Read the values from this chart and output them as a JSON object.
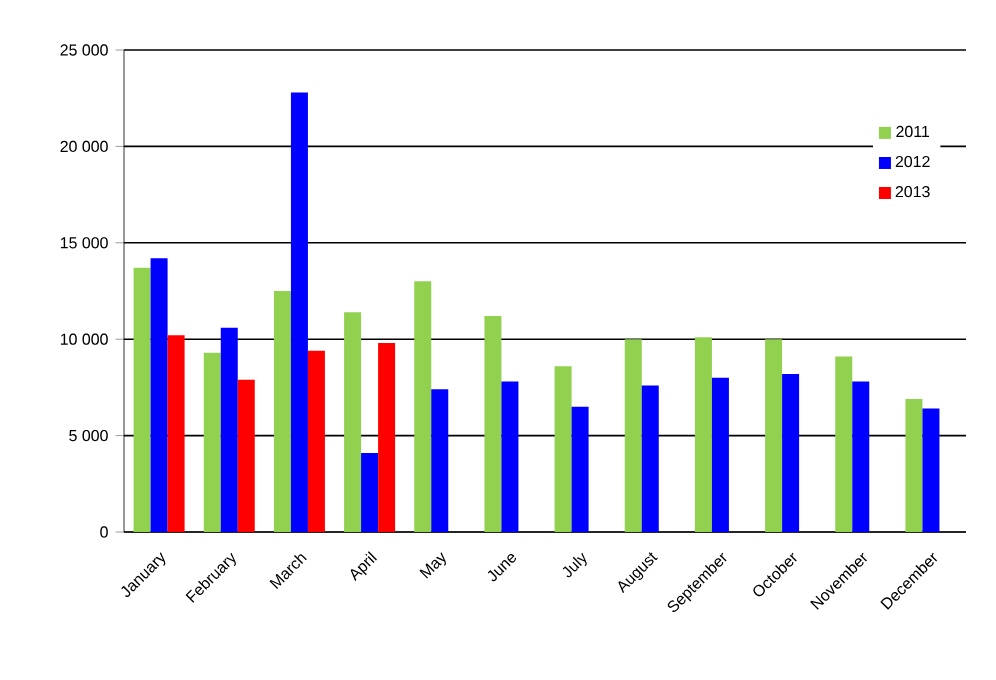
{
  "chart_data": {
    "type": "bar",
    "categories": [
      "January",
      "February",
      "March",
      "April",
      "May",
      "June",
      "July",
      "August",
      "September",
      "October",
      "November",
      "December"
    ],
    "series": [
      {
        "name": "2011",
        "color": "#92d050",
        "values": [
          13700,
          9300,
          12500,
          11400,
          13000,
          11200,
          8600,
          10000,
          10100,
          10000,
          9100,
          6900
        ]
      },
      {
        "name": "2012",
        "color": "#0000ff",
        "values": [
          14200,
          10600,
          22800,
          4100,
          7400,
          7800,
          6500,
          7600,
          8000,
          8200,
          7800,
          6400
        ]
      },
      {
        "name": "2013",
        "color": "#ff0000",
        "values": [
          10200,
          7900,
          9400,
          9800,
          null,
          null,
          null,
          null,
          null,
          null,
          null,
          null
        ]
      }
    ],
    "ylim": [
      0,
      25000
    ],
    "yticks": [
      {
        "value": 0,
        "label": "0"
      },
      {
        "value": 5000,
        "label": "5 000"
      },
      {
        "value": 10000,
        "label": "10 000"
      },
      {
        "value": 15000,
        "label": "15 000"
      },
      {
        "value": 20000,
        "label": "20 000"
      },
      {
        "value": 25000,
        "label": "25 000"
      }
    ],
    "grid": "y",
    "legend": "top right"
  }
}
